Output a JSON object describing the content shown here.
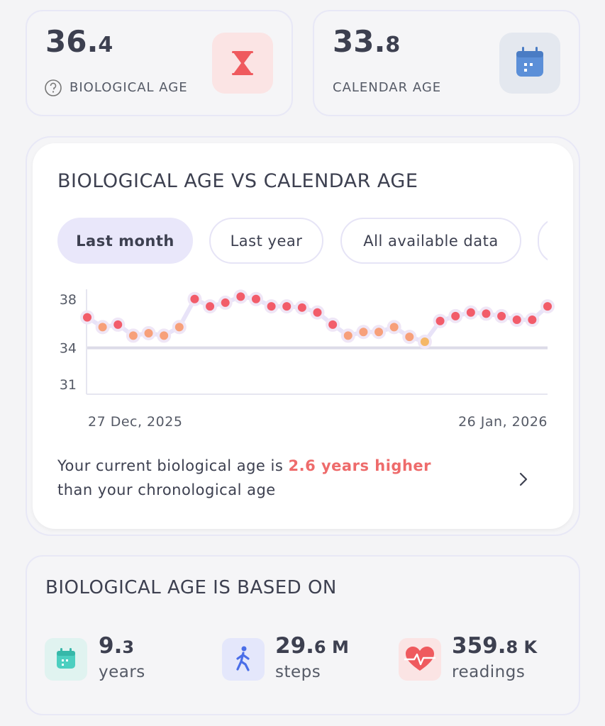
{
  "cards": [
    {
      "whole": "36.",
      "fraction": "4",
      "label": "BIOLOGICAL AGE"
    },
    {
      "whole": "33.",
      "fraction": "8",
      "label": "CALENDAR AGE"
    }
  ],
  "chart_card": {
    "title": "BIOLOGICAL AGE VS CALENDAR AGE",
    "filters": [
      "Last month",
      "Last year",
      "All available data"
    ],
    "message": [
      "Your current biological age is",
      "2.6 years higher",
      "than your chronological age"
    ]
  },
  "chart_data": {
    "type": "line",
    "categories": [
      "27 Dec, 2025",
      null,
      null,
      null,
      null,
      null,
      null,
      null,
      null,
      null,
      null,
      null,
      null,
      null,
      null,
      null,
      null,
      null,
      null,
      null,
      null,
      null,
      null,
      null,
      null,
      null,
      null,
      null,
      null,
      null,
      "26 Jan, 2026"
    ],
    "values": [
      36.5,
      35.7,
      35.9,
      35.0,
      35.2,
      35.0,
      35.7,
      38.0,
      37.4,
      37.7,
      38.2,
      38.0,
      37.4,
      37.4,
      37.3,
      36.9,
      35.9,
      35.0,
      35.3,
      35.3,
      35.7,
      34.9,
      34.5,
      36.2,
      36.6,
      36.9,
      36.8,
      36.6,
      36.3,
      36.3,
      37.4
    ],
    "point_colors": [
      "#f25c6a",
      "#f7a07a",
      "#f25c6a",
      "#f7a07a",
      "#f7a07a",
      "#f7a07a",
      "#f7a07a",
      "#f25c6a",
      "#f25c6a",
      "#f25c6a",
      "#f25c6a",
      "#f25c6a",
      "#f25c6a",
      "#f25c6a",
      "#f25c6a",
      "#f25c6a",
      "#f25c6a",
      "#f7a07a",
      "#f7a07a",
      "#f7a07a",
      "#f7a07a",
      "#f7a07a",
      "#f5b868",
      "#f25c6a",
      "#f25c6a",
      "#f25c6a",
      "#f25c6a",
      "#f25c6a",
      "#f25c6a",
      "#f25c6a",
      "#f25c6a"
    ],
    "line_color": "#e8e3f8",
    "reference_value": 34,
    "reference_color": "#dcdbe8",
    "ylim": [
      30.2,
      38.8
    ],
    "yticks": [
      31,
      34,
      38
    ],
    "grid": false
  },
  "based_on": {
    "title": "BIOLOGICAL AGE IS BASED ON",
    "stats": [
      {
        "whole": "9.",
        "fraction": "3",
        "label": "years"
      },
      {
        "whole": "29.",
        "fraction": "6 M",
        "label": "steps"
      },
      {
        "whole": "359.",
        "fraction": "8 K",
        "label": "readings"
      }
    ]
  }
}
